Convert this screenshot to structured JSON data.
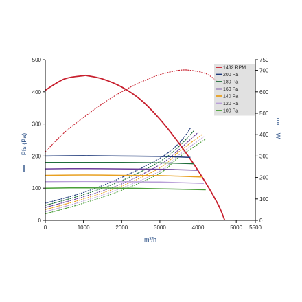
{
  "chart_data": {
    "type": "line",
    "title": "",
    "xlabel": "m³/h",
    "ylabel_left": "Pfs (Pa)",
    "ylabel_right": "W",
    "xlim": [
      0,
      5500
    ],
    "ylim_left": [
      0,
      500
    ],
    "ylim_right": [
      0,
      750
    ],
    "x_ticks": [
      "0",
      "1000",
      "2000",
      "3000",
      "4000",
      "5000",
      "5500"
    ],
    "x_tick_values": [
      0,
      1000,
      2000,
      3000,
      4000,
      5000,
      5500
    ],
    "y_left_ticks": [
      "0",
      "100",
      "200",
      "300",
      "400",
      "500"
    ],
    "y_left_tick_values": [
      0,
      100,
      200,
      300,
      400,
      500
    ],
    "y_right_ticks": [
      "0",
      "100",
      "200",
      "300",
      "400",
      "500",
      "600",
      "700",
      "750"
    ],
    "y_right_tick_values": [
      0,
      100,
      200,
      300,
      400,
      500,
      600,
      700,
      750
    ],
    "grid": false,
    "legend_position": "top-right",
    "pressure_series": [
      {
        "name": "1432 RPM",
        "color": "#c8202e",
        "x": [
          0,
          500,
          1000,
          1100,
          1500,
          2000,
          2500,
          3000,
          3500,
          4000,
          4500,
          4700
        ],
        "y": [
          405,
          440,
          450,
          450,
          440,
          415,
          375,
          315,
          240,
          155,
          55,
          0
        ]
      },
      {
        "name": "200 Pa",
        "color": "#1f3a7a",
        "x": [
          0,
          1000,
          2000,
          3000,
          3800
        ],
        "y": [
          200,
          201,
          200,
          199,
          196
        ]
      },
      {
        "name": "180 Pa",
        "color": "#1f6e3c",
        "x": [
          0,
          1000,
          2000,
          3000,
          3900
        ],
        "y": [
          180,
          180,
          180,
          179,
          176
        ]
      },
      {
        "name": "160 Pa",
        "color": "#6a3d9a",
        "x": [
          0,
          1000,
          2000,
          3000,
          4000
        ],
        "y": [
          160,
          161,
          160,
          159,
          156
        ]
      },
      {
        "name": "140 Pa",
        "color": "#e8a020",
        "x": [
          0,
          1000,
          2000,
          3000,
          4100
        ],
        "y": [
          140,
          141,
          140,
          139,
          135
        ]
      },
      {
        "name": "120 Pa",
        "color": "#b9a0d8",
        "x": [
          0,
          1000,
          2000,
          3000,
          4150
        ],
        "y": [
          120,
          121,
          120,
          119,
          115
        ]
      },
      {
        "name": "100 Pa",
        "color": "#4a9e38",
        "x": [
          0,
          1000,
          2000,
          3000,
          4200
        ],
        "y": [
          100,
          101,
          100,
          98,
          95
        ]
      }
    ],
    "power_series": [
      {
        "name": "1432 RPM",
        "color": "#c8202e",
        "x": [
          0,
          500,
          1000,
          1500,
          2000,
          2500,
          3000,
          3500,
          3800,
          4200,
          4500
        ],
        "y": [
          320,
          410,
          480,
          545,
          600,
          645,
          680,
          700,
          700,
          685,
          650
        ]
      },
      {
        "name": "200 Pa",
        "color": "#1f3a7a",
        "x": [
          0,
          1000,
          2000,
          3000,
          3500,
          3800
        ],
        "y": [
          80,
          130,
          200,
          290,
          360,
          430
        ]
      },
      {
        "name": "180 Pa",
        "color": "#1f6e3c",
        "x": [
          0,
          1000,
          2000,
          3000,
          3500,
          3900
        ],
        "y": [
          70,
          120,
          185,
          275,
          345,
          420
        ]
      },
      {
        "name": "160 Pa",
        "color": "#6a3d9a",
        "x": [
          0,
          1000,
          2000,
          3000,
          3500,
          4000
        ],
        "y": [
          60,
          110,
          170,
          260,
          330,
          410
        ]
      },
      {
        "name": "140 Pa",
        "color": "#e8a020",
        "x": [
          0,
          1000,
          2000,
          3000,
          3500,
          4100
        ],
        "y": [
          50,
          100,
          160,
          245,
          320,
          400
        ]
      },
      {
        "name": "120 Pa",
        "color": "#b9a0d8",
        "x": [
          0,
          1000,
          2000,
          3000,
          3500,
          4150
        ],
        "y": [
          40,
          90,
          150,
          230,
          305,
          390
        ]
      },
      {
        "name": "100 Pa",
        "color": "#4a9e38",
        "x": [
          0,
          1000,
          2000,
          3000,
          3500,
          4200
        ],
        "y": [
          30,
          80,
          140,
          220,
          295,
          380
        ]
      }
    ],
    "legend": [
      "1432 RPM",
      "200 Pa",
      "180 Pa",
      "160 Pa",
      "140 Pa",
      "120 Pa",
      "100 Pa"
    ]
  }
}
